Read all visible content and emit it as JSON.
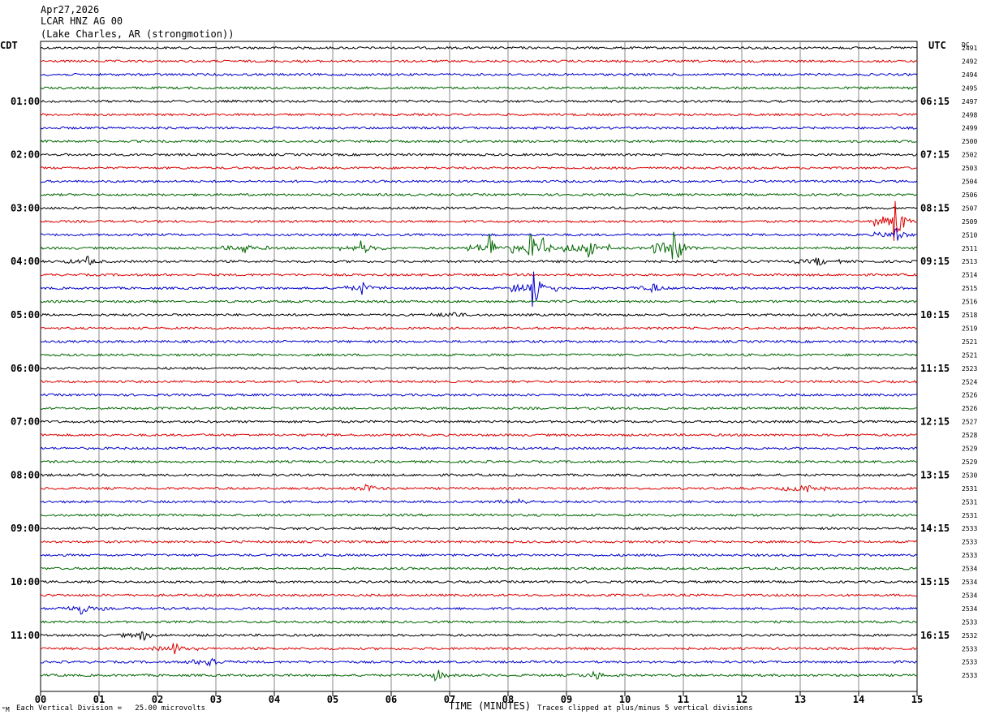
{
  "header": {
    "date": "Apr27,2026",
    "station": "LCAR HNZ AG 00",
    "location": "(Lake Charles, AR (strongmotion))"
  },
  "timezones": {
    "left": "CDT",
    "right": "UTC",
    "dc_header": "DC"
  },
  "footer": {
    "scale_note": "Each Vertical Division =   25.00 microvolts",
    "x_title": "TIME (MINUTES)",
    "clip_note": "Traces clipped at plus/minus 5 vertical divisions",
    "corner_mark": "°M"
  },
  "colors": {
    "trace_cycle": [
      "#000000",
      "#dd0000",
      "#0000cc",
      "#006600"
    ],
    "grid": "#888888"
  },
  "chart_data": {
    "type": "line",
    "title": "LCAR HNZ AG 00",
    "xlabel": "TIME (MINUTES)",
    "xlim": [
      0,
      15
    ],
    "x_ticks": [
      "00",
      "01",
      "02",
      "03",
      "04",
      "05",
      "06",
      "07",
      "08",
      "09",
      "10",
      "11",
      "12",
      "13",
      "14",
      "15"
    ],
    "left_hour_labels": [
      "01:00",
      "02:00",
      "03:00",
      "04:00",
      "05:00",
      "06:00",
      "07:00",
      "08:00",
      "09:00",
      "10:00",
      "11:00"
    ],
    "right_hour_labels": [
      "06:15",
      "07:15",
      "08:15",
      "09:15",
      "10:15",
      "11:15",
      "12:15",
      "13:15",
      "14:15",
      "15:15",
      "16:15"
    ],
    "dc_offsets": [
      "2491",
      "2492",
      "2494",
      "2495",
      "2497",
      "2498",
      "2499",
      "2500",
      "2502",
      "2503",
      "2504",
      "2506",
      "2507",
      "2509",
      "2510",
      "2511",
      "2513",
      "2514",
      "2515",
      "2516",
      "2518",
      "2519",
      "2521",
      "2521",
      "2523",
      "2524",
      "2526",
      "2526",
      "2527",
      "2528",
      "2529",
      "2529",
      "2530",
      "2531",
      "2531",
      "2531",
      "2533",
      "2533",
      "2533",
      "2534",
      "2534",
      "2534",
      "2534",
      "2533",
      "2532",
      "2533",
      "2533",
      "2533"
    ],
    "traces_per_hour": 4,
    "trace_count": 48,
    "events": [
      {
        "row": 13,
        "minute": 14.65,
        "amp": 3.2
      },
      {
        "row": 14,
        "minute": 14.65,
        "amp": 1.2
      },
      {
        "row": 15,
        "minute": 10.85,
        "amp": 3.4
      },
      {
        "row": 15,
        "minute": 9.35,
        "amp": 2.2
      },
      {
        "row": 15,
        "minute": 7.7,
        "amp": 2.0
      },
      {
        "row": 15,
        "minute": 8.4,
        "amp": 1.6
      },
      {
        "row": 15,
        "minute": 8.6,
        "amp": 1.2
      },
      {
        "row": 15,
        "minute": 5.5,
        "amp": 1.0
      },
      {
        "row": 15,
        "minute": 3.5,
        "amp": 0.8
      },
      {
        "row": 16,
        "minute": 13.3,
        "amp": 0.7
      },
      {
        "row": 16,
        "minute": 0.8,
        "amp": 0.7
      },
      {
        "row": 18,
        "minute": 8.45,
        "amp": 2.4
      },
      {
        "row": 18,
        "minute": 5.5,
        "amp": 0.9
      },
      {
        "row": 18,
        "minute": 10.5,
        "amp": 0.6
      },
      {
        "row": 20,
        "minute": 7.05,
        "amp": 0.6
      },
      {
        "row": 33,
        "minute": 13.05,
        "amp": 1.1
      },
      {
        "row": 33,
        "minute": 5.6,
        "amp": 0.6
      },
      {
        "row": 34,
        "minute": 8.2,
        "amp": 0.5
      },
      {
        "row": 42,
        "minute": 0.7,
        "amp": 0.9
      },
      {
        "row": 44,
        "minute": 1.75,
        "amp": 0.7
      },
      {
        "row": 45,
        "minute": 2.3,
        "amp": 0.8
      },
      {
        "row": 46,
        "minute": 2.9,
        "amp": 1.1
      },
      {
        "row": 47,
        "minute": 6.8,
        "amp": 0.7
      },
      {
        "row": 47,
        "minute": 9.5,
        "amp": 0.6
      }
    ]
  }
}
